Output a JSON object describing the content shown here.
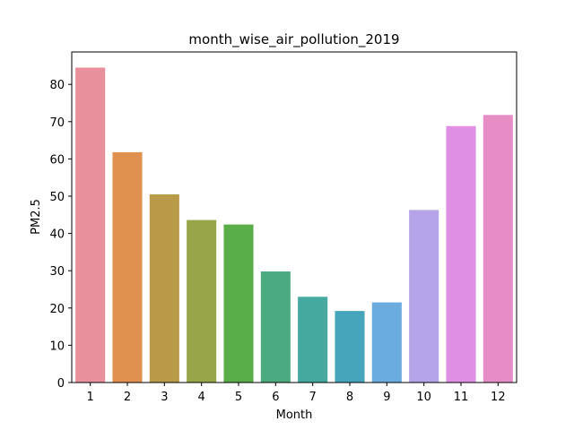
{
  "chart_data": {
    "type": "bar",
    "title": "month_wise_air_pollution_2019",
    "xlabel": "Month",
    "ylabel": "PM2.5",
    "categories": [
      "1",
      "2",
      "3",
      "4",
      "5",
      "6",
      "7",
      "8",
      "9",
      "10",
      "11",
      "12"
    ],
    "values": [
      84.5,
      61.8,
      50.5,
      43.6,
      42.4,
      29.8,
      23.0,
      19.2,
      21.5,
      46.3,
      68.8,
      71.8
    ],
    "colors": [
      "#e8909c",
      "#e0914f",
      "#b89a48",
      "#98a548",
      "#5aae4a",
      "#4caa80",
      "#45a9a0",
      "#44a5bb",
      "#6aabe0",
      "#b5a5e8",
      "#df8fe4",
      "#e68dc6"
    ],
    "ylim": [
      0,
      88.7
    ],
    "yticks": [
      0,
      10,
      20,
      30,
      40,
      50,
      60,
      70,
      80
    ],
    "grid": false,
    "legend": "none"
  }
}
